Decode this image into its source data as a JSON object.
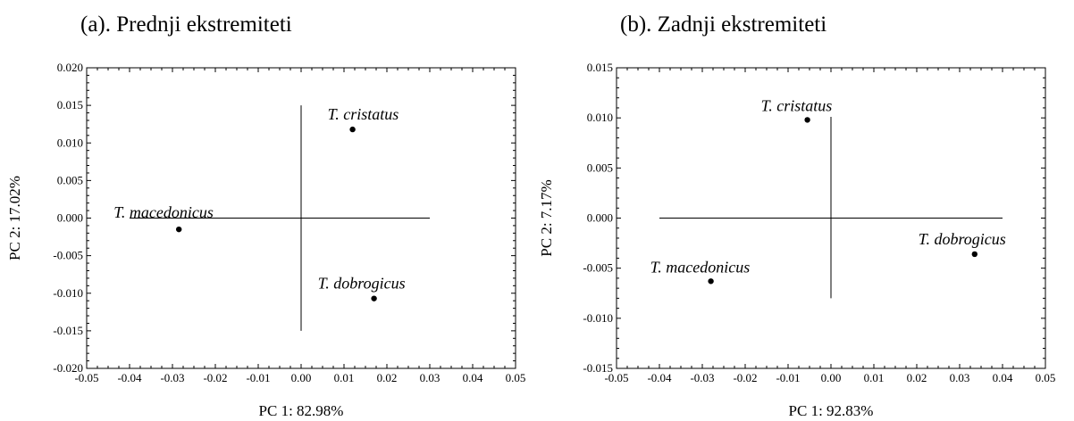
{
  "chart_data": [
    {
      "type": "scatter",
      "panel_title": "(a). Prednji ekstremiteti",
      "xlabel": "PC 1: 82.98%",
      "ylabel": "PC 2: 17.02%",
      "xlim": [
        -0.05,
        0.05
      ],
      "ylim": [
        -0.02,
        0.02
      ],
      "xticks": [
        "-0.05",
        "-0.04",
        "-0.03",
        "-0.02",
        "-0.01",
        "0.00",
        "0.01",
        "0.02",
        "0.03",
        "0.04",
        "0.05"
      ],
      "yticks": [
        "0.020",
        "0.015",
        "0.010",
        "0.005",
        "0.000",
        "-0.005",
        "-0.010",
        "-0.015",
        "-0.020"
      ],
      "crosshair": {
        "h_from": -0.04,
        "h_to": 0.03,
        "v_from": -0.015,
        "v_to": 0.015
      },
      "points": [
        {
          "label": "T. cristatus",
          "x": 0.012,
          "y": 0.0118
        },
        {
          "label": "T. macedonicus",
          "x": -0.0285,
          "y": -0.0015
        },
        {
          "label": "T. dobrogicus",
          "x": 0.017,
          "y": -0.0107
        }
      ]
    },
    {
      "type": "scatter",
      "panel_title": "(b). Zadnji ekstremiteti",
      "xlabel": "PC 1: 92.83%",
      "ylabel": "PC 2:  7.17%",
      "xlim": [
        -0.05,
        0.05
      ],
      "ylim": [
        -0.015,
        0.015
      ],
      "xticks": [
        "-0.05",
        "-0.04",
        "-0.03",
        "-0.02",
        "-0.01",
        "0.00",
        "0.01",
        "0.02",
        "0.03",
        "0.04",
        "0.05"
      ],
      "yticks": [
        "0.015",
        "0.010",
        "0.005",
        "0.000",
        "-0.005",
        "-0.010",
        "-0.015"
      ],
      "crosshair": {
        "h_from": -0.04,
        "h_to": 0.04,
        "v_from": -0.008,
        "v_to": 0.0101
      },
      "points": [
        {
          "label": "T. cristatus",
          "x": -0.0055,
          "y": 0.0098
        },
        {
          "label": "T. macedonicus",
          "x": -0.028,
          "y": -0.0063
        },
        {
          "label": "T. dobrogicus",
          "x": 0.0335,
          "y": -0.0036
        }
      ]
    }
  ]
}
